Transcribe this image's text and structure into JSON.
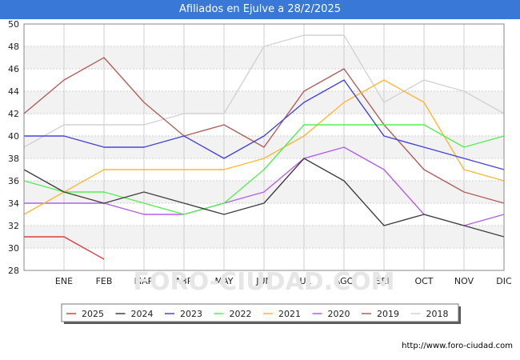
{
  "title": "Afiliados en Ejulve a 28/2/2025",
  "footer_url": "http://www.foro-ciudad.com",
  "watermark": "FORO-CIUDAD.COM",
  "chart_data": {
    "type": "line",
    "title": "Afiliados en Ejulve a 28/2/2025",
    "xlabel": "",
    "ylabel": "",
    "ylim": [
      28,
      50
    ],
    "yticks": [
      28,
      30,
      32,
      34,
      36,
      38,
      40,
      42,
      44,
      46,
      48,
      50
    ],
    "categories": [
      "",
      "ENE",
      "FEB",
      "MAR",
      "ABR",
      "MAY",
      "JUN",
      "JUL",
      "AGO",
      "SEP",
      "OCT",
      "NOV",
      "DIC"
    ],
    "legend_position": "bottom",
    "series": [
      {
        "name": "2025",
        "color": "#e03c3c",
        "values": [
          31,
          31,
          29,
          null,
          null,
          null,
          null,
          null,
          null,
          null,
          null,
          null,
          null
        ]
      },
      {
        "name": "2024",
        "color": "#404040",
        "values": [
          37,
          35,
          34,
          35,
          34,
          33,
          34,
          38,
          36,
          32,
          33,
          32,
          31
        ]
      },
      {
        "name": "2023",
        "color": "#4444dd",
        "values": [
          40,
          40,
          39,
          39,
          40,
          38,
          40,
          43,
          45,
          40,
          39,
          38,
          37
        ]
      },
      {
        "name": "2022",
        "color": "#55ee55",
        "values": [
          36,
          35,
          35,
          34,
          33,
          34,
          37,
          41,
          41,
          41,
          41,
          39,
          40
        ]
      },
      {
        "name": "2021",
        "color": "#ffb733",
        "values": [
          33,
          35,
          37,
          37,
          37,
          37,
          38,
          40,
          43,
          45,
          43,
          37,
          36
        ]
      },
      {
        "name": "2020",
        "color": "#b45ee8",
        "values": [
          34,
          34,
          34,
          33,
          33,
          34,
          35,
          38,
          39,
          37,
          33,
          32,
          33
        ]
      },
      {
        "name": "2019",
        "color": "#b0605a",
        "values": [
          42,
          45,
          47,
          43,
          40,
          41,
          39,
          44,
          46,
          41,
          37,
          35,
          34
        ]
      },
      {
        "name": "2018",
        "color": "#d2d2d2",
        "values": [
          39,
          41,
          41,
          41,
          42,
          42,
          48,
          49,
          49,
          43,
          45,
          44,
          42
        ]
      }
    ]
  }
}
